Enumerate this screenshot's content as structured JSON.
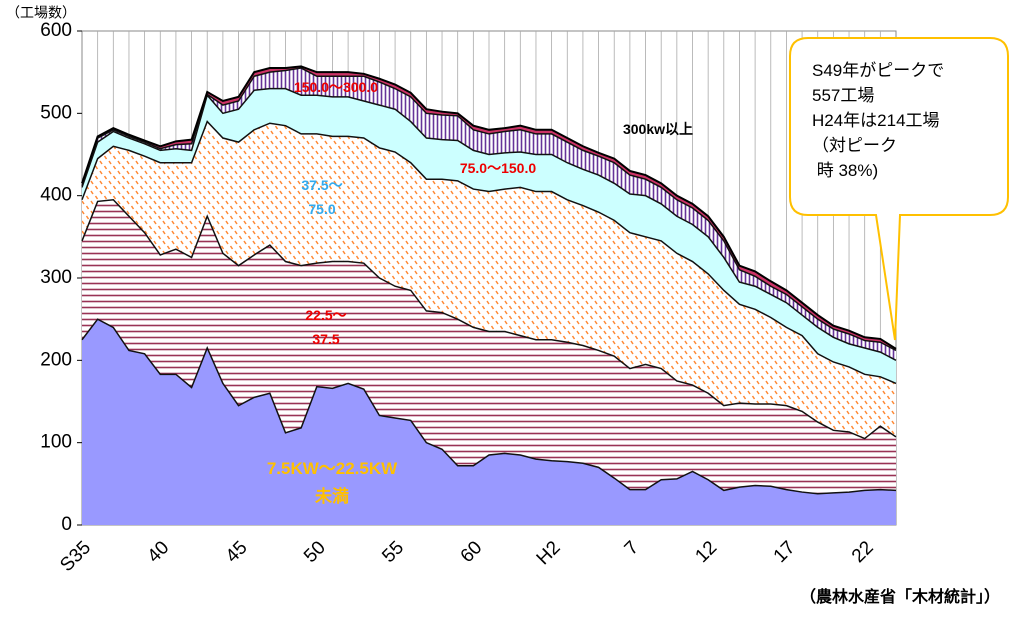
{
  "chart_data": {
    "type": "stacked_area",
    "y_label": "（工場数）",
    "source": "（農林水産省「木材統計」）",
    "annotation": [
      "S49年がピークで",
      "557工場",
      "H24年は214工場",
      "（対ピーク",
      " 時 38%)"
    ],
    "categories": [
      "S35",
      null,
      null,
      null,
      null,
      "40",
      null,
      null,
      null,
      null,
      "45",
      null,
      null,
      null,
      null,
      "50",
      null,
      null,
      null,
      null,
      "55",
      null,
      null,
      null,
      null,
      "60",
      null,
      null,
      null,
      null,
      "H2",
      null,
      null,
      null,
      null,
      "7",
      null,
      null,
      null,
      null,
      "12",
      null,
      null,
      null,
      null,
      "17",
      null,
      null,
      null,
      null,
      "22",
      null,
      null
    ],
    "ylim": [
      0,
      600
    ],
    "yticks": [
      0,
      100,
      200,
      300,
      400,
      500,
      600
    ],
    "grid": true,
    "series": [
      {
        "name": "7.5KW～22.5KW\n未満",
        "color": "#9999ff",
        "values": [
          225,
          250,
          240,
          212,
          208,
          183,
          183,
          167,
          215,
          172,
          145,
          155,
          160,
          112,
          118,
          168,
          166,
          172,
          165,
          133,
          130,
          127,
          100,
          92,
          72,
          72,
          85,
          87,
          85,
          80,
          78,
          77,
          75,
          70,
          57,
          43,
          43,
          55,
          56,
          65,
          55,
          42,
          46,
          48,
          47,
          43,
          40,
          38,
          39,
          40,
          42,
          43,
          42
        ]
      },
      {
        "name": "22.5～\n37.5",
        "color": "#993355",
        "values": [
          120,
          143,
          155,
          163,
          147,
          145,
          152,
          158,
          160,
          158,
          170,
          173,
          180,
          208,
          197,
          150,
          154,
          148,
          153,
          167,
          160,
          158,
          160,
          166,
          178,
          168,
          150,
          148,
          145,
          145,
          147,
          145,
          143,
          142,
          148,
          147,
          152,
          135,
          119,
          105,
          105,
          103,
          102,
          99,
          100,
          102,
          98,
          87,
          76,
          73,
          63,
          77,
          65
        ]
      },
      {
        "name": "37.5～\n75.0",
        "color": "#ff8833",
        "values": [
          50,
          52,
          65,
          80,
          93,
          112,
          105,
          115,
          115,
          140,
          150,
          152,
          148,
          165,
          160,
          157,
          152,
          152,
          152,
          158,
          163,
          155,
          160,
          162,
          168,
          168,
          170,
          173,
          180,
          180,
          180,
          173,
          170,
          168,
          165,
          165,
          155,
          155,
          155,
          150,
          145,
          140,
          120,
          115,
          105,
          95,
          92,
          83,
          83,
          79,
          78,
          60,
          65
        ]
      },
      {
        "name": "75.0～150.0",
        "color": "#ccffff",
        "values": [
          15,
          20,
          18,
          15,
          15,
          15,
          17,
          15,
          32,
          30,
          40,
          48,
          42,
          45,
          47,
          47,
          48,
          48,
          45,
          52,
          52,
          50,
          50,
          48,
          49,
          47,
          45,
          44,
          43,
          45,
          45,
          45,
          44,
          45,
          45,
          47,
          50,
          45,
          45,
          45,
          45,
          40,
          27,
          28,
          28,
          30,
          25,
          32,
          30,
          28,
          32,
          30,
          28
        ]
      },
      {
        "name": "150.0～300.0",
        "color": "#663399",
        "values": [
          2,
          5,
          2,
          2,
          2,
          2,
          5,
          8,
          1,
          10,
          10,
          17,
          20,
          22,
          33,
          23,
          25,
          25,
          30,
          28,
          25,
          30,
          30,
          30,
          30,
          25,
          25,
          26,
          27,
          25,
          25,
          25,
          23,
          23,
          25,
          23,
          20,
          20,
          20,
          20,
          20,
          20,
          15,
          12,
          10,
          10,
          10,
          10,
          10,
          12,
          9,
          12,
          12
        ]
      },
      {
        "name": "300kw以上",
        "color": "#cc3366",
        "values": [
          3,
          2,
          2,
          2,
          2,
          3,
          4,
          5,
          3,
          5,
          5,
          5,
          5,
          3,
          2,
          5,
          5,
          5,
          3,
          4,
          5,
          5,
          5,
          4,
          3,
          5,
          5,
          4,
          5,
          5,
          5,
          5,
          5,
          4,
          5,
          5,
          5,
          5,
          5,
          5,
          5,
          5,
          5,
          6,
          6,
          5,
          5,
          5,
          4,
          4,
          4,
          4,
          2
        ]
      }
    ]
  }
}
